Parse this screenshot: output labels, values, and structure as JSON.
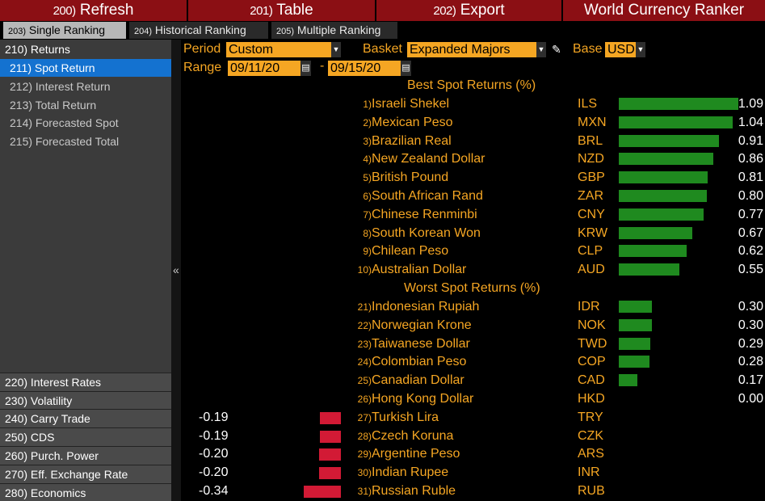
{
  "toolbar": {
    "refresh": {
      "num": "200)",
      "label": "Refresh"
    },
    "table": {
      "num": "201)",
      "label": "Table"
    },
    "export": {
      "num": "202)",
      "label": "Export"
    },
    "title": "World Currency Ranker"
  },
  "subtabs": {
    "single": {
      "num": "203)",
      "label": "Single Ranking"
    },
    "historical": {
      "num": "204)",
      "label": "Historical Ranking"
    },
    "multiple": {
      "num": "205)",
      "label": "Multiple Ranking"
    }
  },
  "menu": {
    "returns_header": "210) Returns",
    "returns_items": [
      "211) Spot Return",
      "212) Interest Return",
      "213) Total Return",
      "214) Forecasted Spot",
      "215) Forecasted Total"
    ],
    "other_items": [
      "220) Interest Rates",
      "230) Volatility",
      "240) Carry Trade",
      "250) CDS",
      "260) Purch. Power",
      "270) Eff. Exchange Rate",
      "280) Economics"
    ]
  },
  "controls": {
    "period_label": "Period",
    "period_value": "Custom",
    "basket_label": "Basket",
    "basket_value": "Expanded Majors",
    "base_label": "Base",
    "base_value": "USD",
    "range_label": "Range",
    "range_start": "09/11/20",
    "range_dash": "-",
    "range_end": "09/15/20"
  },
  "best_title": "Best Spot Returns (%)",
  "worst_title": "Worst Spot Returns (%)",
  "best": [
    {
      "rank": "1)",
      "name": "Israeli Shekel",
      "code": "ILS",
      "value": 1.09,
      "label": "1.09"
    },
    {
      "rank": "2)",
      "name": "Mexican Peso",
      "code": "MXN",
      "value": 1.04,
      "label": "1.04"
    },
    {
      "rank": "3)",
      "name": "Brazilian Real",
      "code": "BRL",
      "value": 0.91,
      "label": "0.91"
    },
    {
      "rank": "4)",
      "name": "New Zealand Dollar",
      "code": "NZD",
      "value": 0.86,
      "label": "0.86"
    },
    {
      "rank": "5)",
      "name": "British Pound",
      "code": "GBP",
      "value": 0.81,
      "label": "0.81"
    },
    {
      "rank": "6)",
      "name": "South African Rand",
      "code": "ZAR",
      "value": 0.8,
      "label": "0.80"
    },
    {
      "rank": "7)",
      "name": "Chinese Renminbi",
      "code": "CNY",
      "value": 0.77,
      "label": "0.77"
    },
    {
      "rank": "8)",
      "name": "South Korean Won",
      "code": "KRW",
      "value": 0.67,
      "label": "0.67"
    },
    {
      "rank": "9)",
      "name": "Chilean Peso",
      "code": "CLP",
      "value": 0.62,
      "label": "0.62"
    },
    {
      "rank": "10)",
      "name": "Australian Dollar",
      "code": "AUD",
      "value": 0.55,
      "label": "0.55"
    }
  ],
  "worst": [
    {
      "rank": "21)",
      "name": "Indonesian Rupiah",
      "code": "IDR",
      "value": 0.3,
      "label": "0.30"
    },
    {
      "rank": "22)",
      "name": "Norwegian Krone",
      "code": "NOK",
      "value": 0.3,
      "label": "0.30"
    },
    {
      "rank": "23)",
      "name": "Taiwanese Dollar",
      "code": "TWD",
      "value": 0.29,
      "label": "0.29"
    },
    {
      "rank": "24)",
      "name": "Colombian Peso",
      "code": "COP",
      "value": 0.28,
      "label": "0.28"
    },
    {
      "rank": "25)",
      "name": "Canadian Dollar",
      "code": "CAD",
      "value": 0.17,
      "label": "0.17"
    },
    {
      "rank": "26)",
      "name": "Hong Kong Dollar",
      "code": "HKD",
      "value": 0.0,
      "label": "0.00"
    },
    {
      "rank": "27)",
      "name": "Turkish Lira",
      "code": "TRY",
      "value": -0.19,
      "label": "-0.19"
    },
    {
      "rank": "28)",
      "name": "Czech Koruna",
      "code": "CZK",
      "value": -0.19,
      "label": "-0.19"
    },
    {
      "rank": "29)",
      "name": "Argentine Peso",
      "code": "ARS",
      "value": -0.2,
      "label": "-0.20"
    },
    {
      "rank": "30)",
      "name": "Indian Rupee",
      "code": "INR",
      "value": -0.2,
      "label": "-0.20"
    },
    {
      "rank": "31)",
      "name": "Russian Ruble",
      "code": "RUB",
      "value": -0.34,
      "label": "-0.34"
    }
  ],
  "colors": {
    "positive_bar": "#1f8a1f",
    "negative_bar": "#d21a35",
    "accent": "#f5a623",
    "toolbar": "#8b0f14",
    "menu_active": "#1472d0"
  },
  "icons": {
    "dropdown": "chevron-down-icon",
    "calendar": "calendar-icon",
    "edit": "pencil-icon",
    "collapse": "double-chevron-left-icon"
  }
}
